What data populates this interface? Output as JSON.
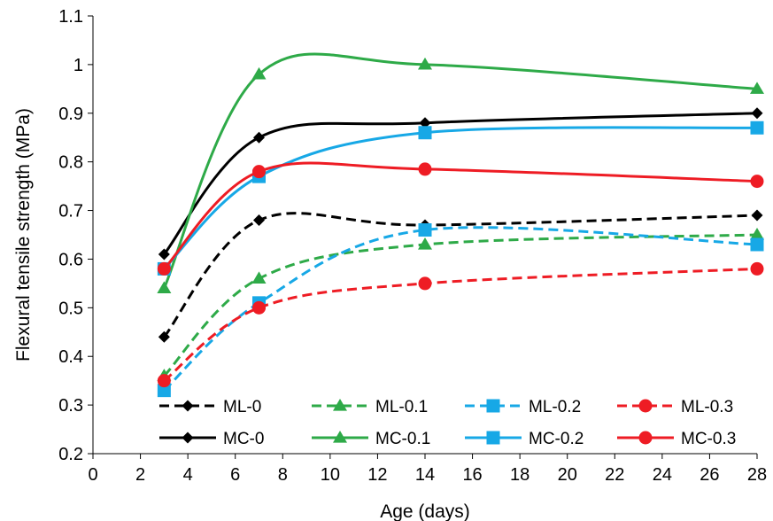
{
  "chart_data": {
    "type": "line",
    "xlabel": "Age (days)",
    "ylabel": "Flexural tensile strength (MPa)",
    "xlim": [
      0,
      28
    ],
    "ylim": [
      0.2,
      1.1
    ],
    "xticks": [
      "0",
      "2",
      "4",
      "6",
      "8",
      "10",
      "12",
      "14",
      "16",
      "18",
      "20",
      "22",
      "24",
      "26",
      "28"
    ],
    "yticks": [
      "0.2",
      "0.3",
      "0.4",
      "0.5",
      "0.6",
      "0.7",
      "0.8",
      "0.9",
      "1",
      "1.1"
    ],
    "grid": false,
    "legend_position": "bottom-inside",
    "x": [
      3,
      7,
      14,
      28
    ],
    "series": [
      {
        "name": "ML-0",
        "values": [
          0.44,
          0.68,
          0.67,
          0.69
        ],
        "color": "#000000",
        "dash": true,
        "marker": "diamond"
      },
      {
        "name": "ML-0.1",
        "values": [
          0.36,
          0.56,
          0.63,
          0.65
        ],
        "color": "#2eaa48",
        "dash": true,
        "marker": "triangle"
      },
      {
        "name": "ML-0.2",
        "values": [
          0.33,
          0.51,
          0.66,
          0.63
        ],
        "color": "#17a8e6",
        "dash": true,
        "marker": "square"
      },
      {
        "name": "ML-0.3",
        "values": [
          0.35,
          0.5,
          0.55,
          0.58
        ],
        "color": "#ee1c24",
        "dash": true,
        "marker": "circle"
      },
      {
        "name": "MC-0",
        "values": [
          0.61,
          0.85,
          0.88,
          0.9
        ],
        "color": "#000000",
        "dash": false,
        "marker": "diamond"
      },
      {
        "name": "MC-0.1",
        "values": [
          0.54,
          0.98,
          1.0,
          0.95
        ],
        "color": "#2eaa48",
        "dash": false,
        "marker": "triangle"
      },
      {
        "name": "MC-0.2",
        "values": [
          0.58,
          0.77,
          0.86,
          0.87
        ],
        "color": "#17a8e6",
        "dash": false,
        "marker": "square"
      },
      {
        "name": "MC-0.3",
        "values": [
          0.58,
          0.78,
          0.785,
          0.76
        ],
        "color": "#ee1c24",
        "dash": false,
        "marker": "circle"
      }
    ]
  }
}
